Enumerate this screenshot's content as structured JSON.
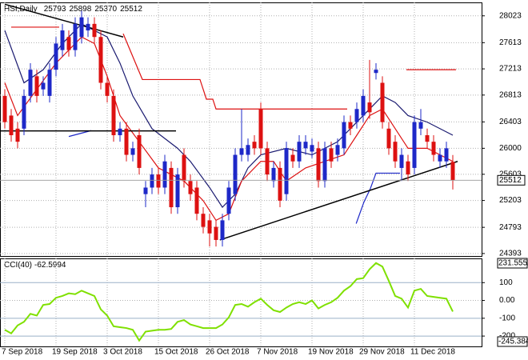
{
  "chart_data": {
    "type": "candlestick",
    "title": "HSI,Daily",
    "up_color": "#1e28c8",
    "down_color": "#dd1111",
    "grid": true,
    "ylim": [
      24355,
      28228
    ],
    "yticks": [
      28023,
      27613,
      27213,
      26813,
      26403,
      26000,
      25603,
      25203,
      24793,
      24393
    ],
    "categories": [
      "7 Sep 2018",
      null,
      null,
      null,
      null,
      null,
      null,
      null,
      "19 Sep 2018",
      null,
      null,
      null,
      null,
      null,
      null,
      null,
      "3 Oct 2018",
      null,
      null,
      null,
      null,
      null,
      null,
      null,
      "15 Oct 2018",
      null,
      null,
      null,
      null,
      null,
      null,
      null,
      "26 Oct 2018",
      null,
      null,
      null,
      null,
      null,
      null,
      null,
      "7 Nov 2018",
      null,
      null,
      null,
      null,
      null,
      null,
      null,
      "19 Nov 2018",
      null,
      null,
      null,
      null,
      null,
      null,
      null,
      "29 Nov 2018",
      null,
      null,
      null,
      null,
      null,
      null,
      null,
      "11 Dec 2018",
      null,
      null,
      null,
      null,
      null,
      null
    ],
    "candles": {
      "open": [
        26800,
        26500,
        26300,
        26300,
        26800,
        27100,
        26900,
        26800,
        27200,
        27500,
        27700,
        27500,
        27700,
        27800,
        27900,
        27700,
        27000,
        26800,
        26200,
        26300,
        25900,
        26200,
        25300,
        25400,
        25600,
        25400,
        25700,
        25100,
        25900,
        25500,
        25400,
        25000,
        24900,
        24800,
        24600,
        25000,
        25300,
        25900,
        25900,
        26100,
        26600,
        26000,
        25500,
        25700,
        25300,
        25900,
        25800,
        26000,
        25950,
        26000,
        25500,
        26000,
        25900,
        26000,
        26400,
        26400,
        26500,
        26700,
        27150,
        27000,
        26300,
        26100,
        25700,
        25800,
        25700,
        26300,
        26200,
        26100,
        25800,
        25800,
        25793
      ],
      "high": [
        26900,
        26600,
        26400,
        26900,
        27300,
        27200,
        27100,
        27300,
        27700,
        27900,
        27800,
        28000,
        28100,
        28000,
        28000,
        27800,
        27100,
        26900,
        26400,
        26400,
        26100,
        26300,
        25500,
        25700,
        25700,
        25900,
        25800,
        25700,
        26000,
        25600,
        25500,
        25100,
        25000,
        24900,
        25000,
        25500,
        26000,
        26600,
        26150,
        26200,
        26700,
        26100,
        25800,
        25800,
        26100,
        26000,
        26200,
        26200,
        26150,
        26100,
        26100,
        26100,
        26150,
        26500,
        26500,
        26700,
        26900,
        27350,
        27300,
        27100,
        26400,
        26200,
        26000,
        25900,
        26500,
        26600,
        26300,
        26200,
        26000,
        26100,
        25898
      ],
      "low": [
        26300,
        26100,
        26000,
        26200,
        26700,
        26700,
        26800,
        26700,
        27100,
        27400,
        27400,
        27400,
        27600,
        27700,
        27600,
        26900,
        26700,
        26100,
        26100,
        25800,
        25800,
        25600,
        25100,
        25300,
        25300,
        25300,
        25000,
        25000,
        25400,
        25200,
        24900,
        24700,
        24500,
        24500,
        24500,
        24900,
        25200,
        25800,
        25800,
        25900,
        25900,
        25500,
        25400,
        25100,
        25200,
        25700,
        25700,
        25900,
        25850,
        25400,
        25400,
        25700,
        25800,
        25900,
        26200,
        26300,
        26400,
        26450,
        27050,
        26300,
        25900,
        25700,
        25500,
        25500,
        25600,
        26200,
        26000,
        25800,
        25700,
        25700,
        25370
      ],
      "close": [
        26400,
        26200,
        26100,
        26800,
        27200,
        26800,
        27000,
        27200,
        27600,
        27800,
        27500,
        27900,
        28000,
        27900,
        27700,
        27000,
        26800,
        26200,
        26300,
        25900,
        26000,
        25700,
        25400,
        25600,
        25400,
        25800,
        25100,
        25600,
        25500,
        25300,
        25000,
        24800,
        24700,
        24600,
        24900,
        25400,
        25900,
        26000,
        26050,
        26000,
        26000,
        25600,
        25700,
        25200,
        26000,
        25800,
        26100,
        26100,
        26050,
        25500,
        26000,
        25800,
        26050,
        26400,
        26300,
        26600,
        26800,
        26550,
        27200,
        26400,
        26000,
        25800,
        25900,
        25600,
        26400,
        26400,
        26100,
        25900,
        25900,
        26000,
        25512
      ]
    },
    "overlays": [
      {
        "color": "#1a1a70",
        "x": [
          0,
          3,
          6,
          9,
          12,
          14,
          16,
          18,
          20,
          23,
          27,
          29,
          32,
          34,
          36,
          38,
          40,
          44,
          48,
          50,
          52,
          54,
          56,
          58,
          59,
          61,
          63,
          66,
          70
        ],
        "values": [
          27800,
          27000,
          27200,
          27600,
          27900,
          27800,
          27700,
          27300,
          26800,
          26300,
          26000,
          25800,
          25400,
          25100,
          25300,
          25700,
          25900,
          26000,
          25900,
          26000,
          26100,
          26300,
          26500,
          26700,
          26800,
          26700,
          26500,
          26400,
          26200
        ]
      },
      {
        "color": "#dd1111",
        "x": [
          0,
          2,
          5,
          8,
          12,
          14,
          16,
          18,
          21,
          24,
          28,
          31,
          33,
          35,
          37,
          40,
          42,
          44,
          47,
          50,
          53,
          55,
          57,
          59,
          61,
          63,
          66,
          70
        ],
        "values": [
          27000,
          26500,
          26900,
          27300,
          27700,
          27600,
          27100,
          26500,
          26100,
          25700,
          25500,
          25200,
          24900,
          25000,
          25500,
          25800,
          25800,
          25500,
          25700,
          25800,
          25900,
          26200,
          26500,
          26600,
          26300,
          26000,
          26000,
          25800
        ]
      },
      {
        "color": "#dd1111",
        "x": [
          1,
          8.5,
          null,
          18.5,
          21.5,
          30.5,
          31.5,
          32.5,
          33,
          53.5,
          null,
          62.75,
          70.5
        ],
        "values": [
          27850,
          27850,
          null,
          27750,
          27050,
          27050,
          26750,
          26750,
          26600,
          26600,
          null,
          27200,
          27200
        ]
      },
      {
        "color": "#1e28c8",
        "x": [
          10,
          13.5,
          null,
          54.9,
          56.1,
          57.1,
          58,
          61.75
        ],
        "values": [
          26180,
          26270,
          null,
          24850,
          25175,
          25380,
          25620,
          25620
        ]
      },
      {
        "color": "#000000",
        "x": [
          0,
          18.5,
          null,
          -0.7,
          26.75,
          null,
          33.6,
          70.75
        ],
        "values": [
          28200,
          27700,
          null,
          26265,
          26265,
          null,
          24600,
          25800
        ]
      }
    ],
    "cci": {
      "label": "CCI(40)",
      "color": "#7fe000",
      "ylim": [
        -258,
        236
      ],
      "yticks": [
        100,
        {
          "value": 0,
          "label": "0.00"
        },
        -100,
        -200
      ],
      "max_label": 231.5552,
      "min_label": -245.384,
      "values": [
        -165,
        -185,
        -140,
        -120,
        -75,
        -85,
        -25,
        -20,
        15,
        25,
        40,
        35,
        55,
        40,
        25,
        -50,
        -85,
        -145,
        -150,
        -155,
        -165,
        -225,
        -175,
        -170,
        -165,
        -165,
        -160,
        -120,
        -110,
        -135,
        -145,
        -155,
        -155,
        -155,
        -135,
        -95,
        -25,
        -20,
        -35,
        -10,
        10,
        -25,
        -55,
        -65,
        -40,
        -20,
        -10,
        -20,
        0,
        -45,
        -25,
        -10,
        15,
        55,
        80,
        120,
        125,
        175,
        210,
        190,
        110,
        25,
        10,
        -40,
        55,
        65,
        25,
        20,
        15,
        10,
        -62.5994
      ]
    }
  }
}
